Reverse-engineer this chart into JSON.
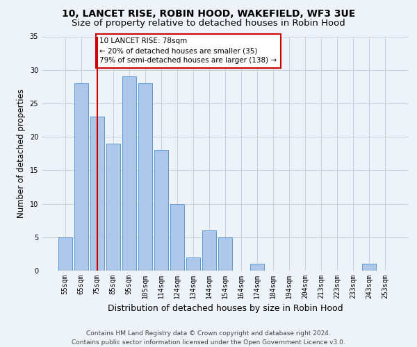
{
  "title_line1": "10, LANCET RISE, ROBIN HOOD, WAKEFIELD, WF3 3UE",
  "title_line2": "Size of property relative to detached houses in Robin Hood",
  "xlabel": "Distribution of detached houses by size in Robin Hood",
  "ylabel": "Number of detached properties",
  "categories": [
    "55sqm",
    "65sqm",
    "75sqm",
    "85sqm",
    "95sqm",
    "105sqm",
    "114sqm",
    "124sqm",
    "134sqm",
    "144sqm",
    "154sqm",
    "164sqm",
    "174sqm",
    "184sqm",
    "194sqm",
    "204sqm",
    "213sqm",
    "223sqm",
    "233sqm",
    "243sqm",
    "253sqm"
  ],
  "values": [
    5,
    28,
    23,
    19,
    29,
    28,
    18,
    10,
    2,
    6,
    5,
    0,
    1,
    0,
    0,
    0,
    0,
    0,
    0,
    1,
    0
  ],
  "bar_color": "#aec6e8",
  "bar_edge_color": "#5b9bd5",
  "vline_x_index": 2,
  "vline_color": "#cc0000",
  "annotation_text": "10 LANCET RISE: 78sqm\n← 20% of detached houses are smaller (35)\n79% of semi-detached houses are larger (138) →",
  "annotation_box_color": "#ffffff",
  "annotation_edge_color": "#cc0000",
  "ylim": [
    0,
    35
  ],
  "yticks": [
    0,
    5,
    10,
    15,
    20,
    25,
    30,
    35
  ],
  "footer_line1": "Contains HM Land Registry data © Crown copyright and database right 2024.",
  "footer_line2": "Contains public sector information licensed under the Open Government Licence v3.0.",
  "background_color": "#eef2f9",
  "grid_color": "#c8d0dc",
  "title_fontsize": 10,
  "subtitle_fontsize": 9.5,
  "ylabel_fontsize": 8.5,
  "xlabel_fontsize": 9,
  "tick_fontsize": 7,
  "annotation_fontsize": 7.5,
  "footer_fontsize": 6.5
}
